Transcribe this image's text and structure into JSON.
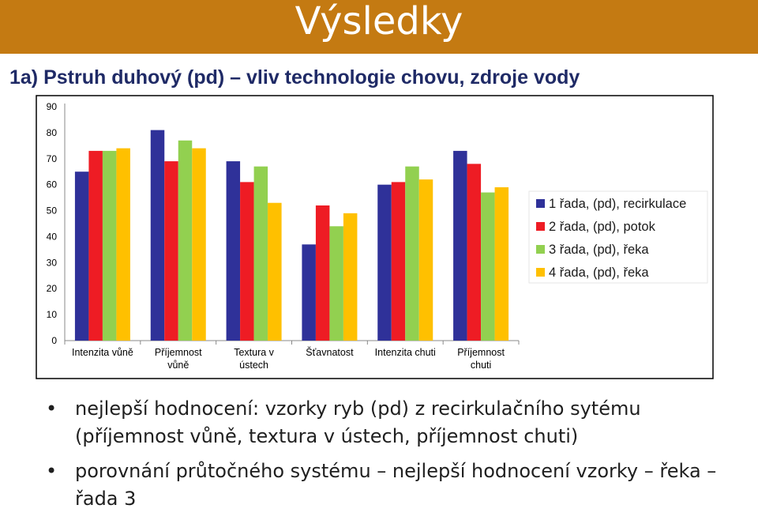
{
  "header": {
    "title": "Výsledky"
  },
  "subtitle": "1a) Pstruh duhový (pd) – vliv technologie chovu, zdroje vody",
  "chart_data": {
    "type": "bar",
    "categories": [
      [
        "Intenzita vůně"
      ],
      [
        "Příjemnost",
        "vůně"
      ],
      [
        "Textura v",
        "ústech"
      ],
      [
        "Šťavnatost"
      ],
      [
        "Intenzita chuti"
      ],
      [
        "Příjemnost",
        "chuti"
      ]
    ],
    "series": [
      {
        "name": "1 řada, (pd), recirkulace",
        "color": "#2f3199",
        "values": [
          65,
          81,
          69,
          37,
          60,
          73
        ]
      },
      {
        "name": "2 řada, (pd), potok",
        "color": "#ee1c24",
        "values": [
          73,
          69,
          61,
          52,
          61,
          68
        ]
      },
      {
        "name": "3 řada, (pd), řeka",
        "color": "#92d050",
        "values": [
          73,
          77,
          67,
          44,
          67,
          57
        ]
      },
      {
        "name": "4 řada, (pd), řeka",
        "color": "#ffc000",
        "values": [
          74,
          74,
          53,
          49,
          62,
          59
        ]
      }
    ],
    "yticks": [
      "90",
      "80",
      "70",
      "60",
      "50",
      "40",
      "30",
      "20",
      "10",
      "0"
    ],
    "ylim": [
      0,
      90
    ],
    "grid": false,
    "legend": "right"
  },
  "bullets": [
    "nejlepší hodnocení: vzorky ryb (pd) z recirkulačního sytému (příjemnost vůně, textura v ústech, příjemnost  chuti)",
    "porovnání průtočného systému – nejlepší hodnocení vzorky – řeka – řada 3"
  ]
}
